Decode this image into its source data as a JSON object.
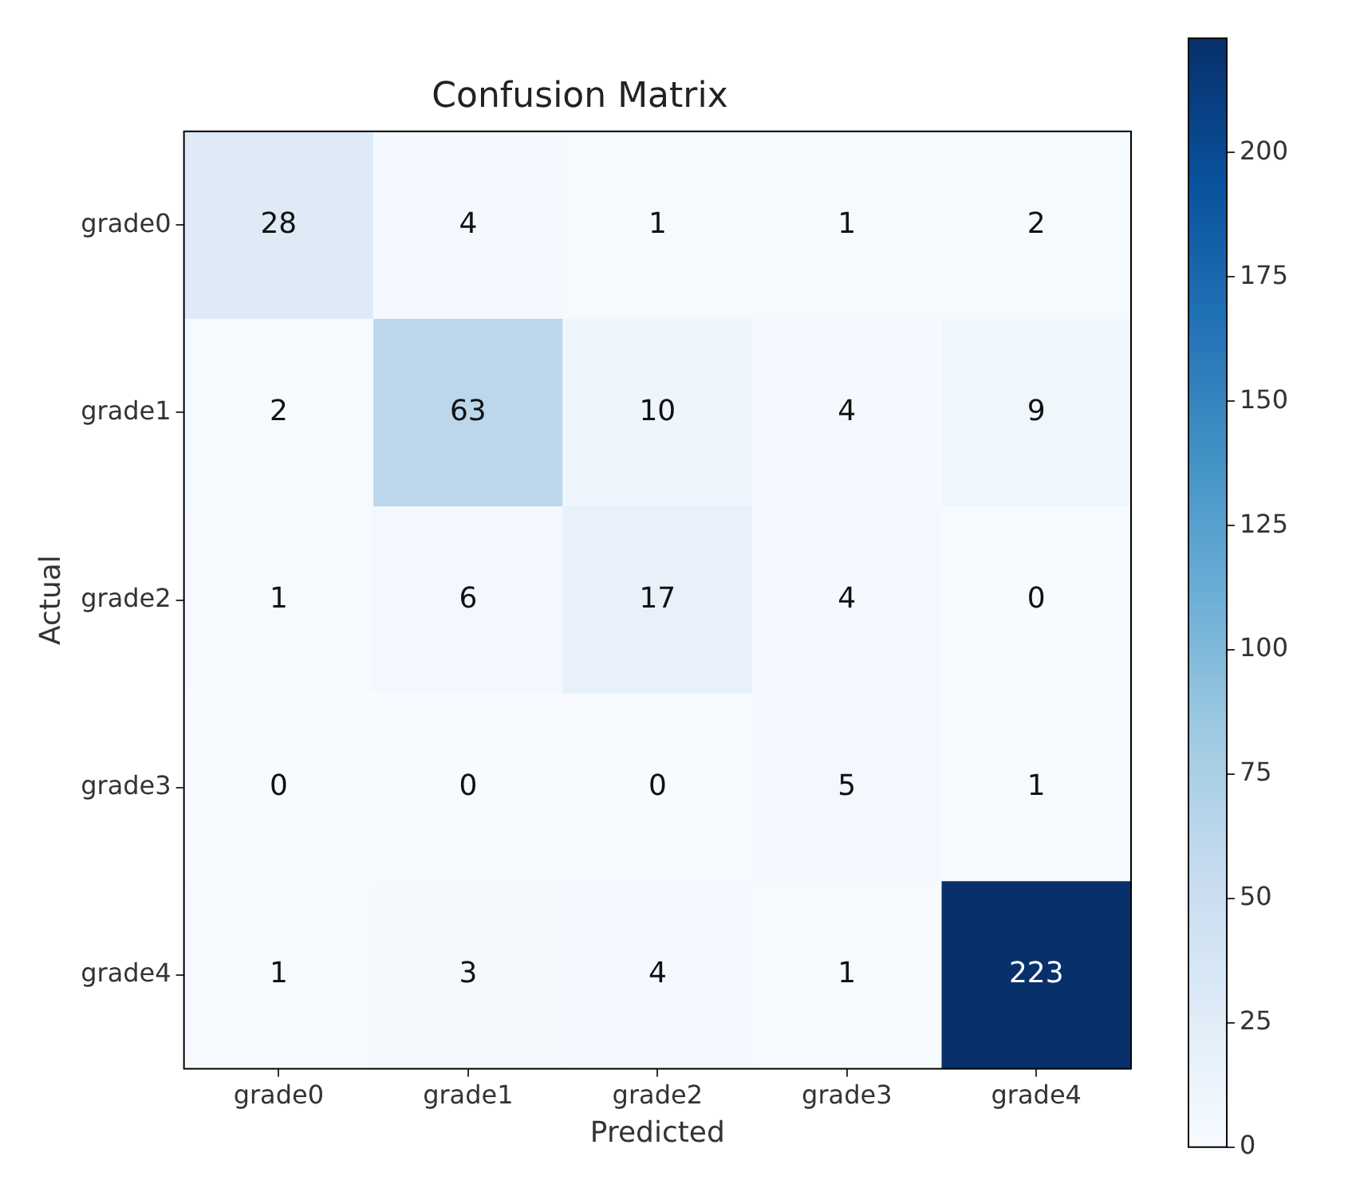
{
  "chart_data": {
    "type": "heatmap",
    "title": "Confusion Matrix",
    "xlabel": "Predicted",
    "ylabel": "Actual",
    "categories": [
      "grade0",
      "grade1",
      "grade2",
      "grade3",
      "grade4"
    ],
    "y_categories": [
      "grade0",
      "grade1",
      "grade2",
      "grade3",
      "grade4"
    ],
    "cells": [
      [
        28,
        4,
        1,
        1,
        2
      ],
      [
        2,
        63,
        10,
        4,
        9
      ],
      [
        1,
        6,
        17,
        4,
        0
      ],
      [
        0,
        0,
        0,
        5,
        1
      ],
      [
        1,
        3,
        4,
        1,
        223
      ]
    ],
    "clim": [
      0,
      223
    ],
    "cticks": [
      0,
      25,
      50,
      75,
      100,
      125,
      150,
      175,
      200
    ],
    "data_labels": true
  }
}
